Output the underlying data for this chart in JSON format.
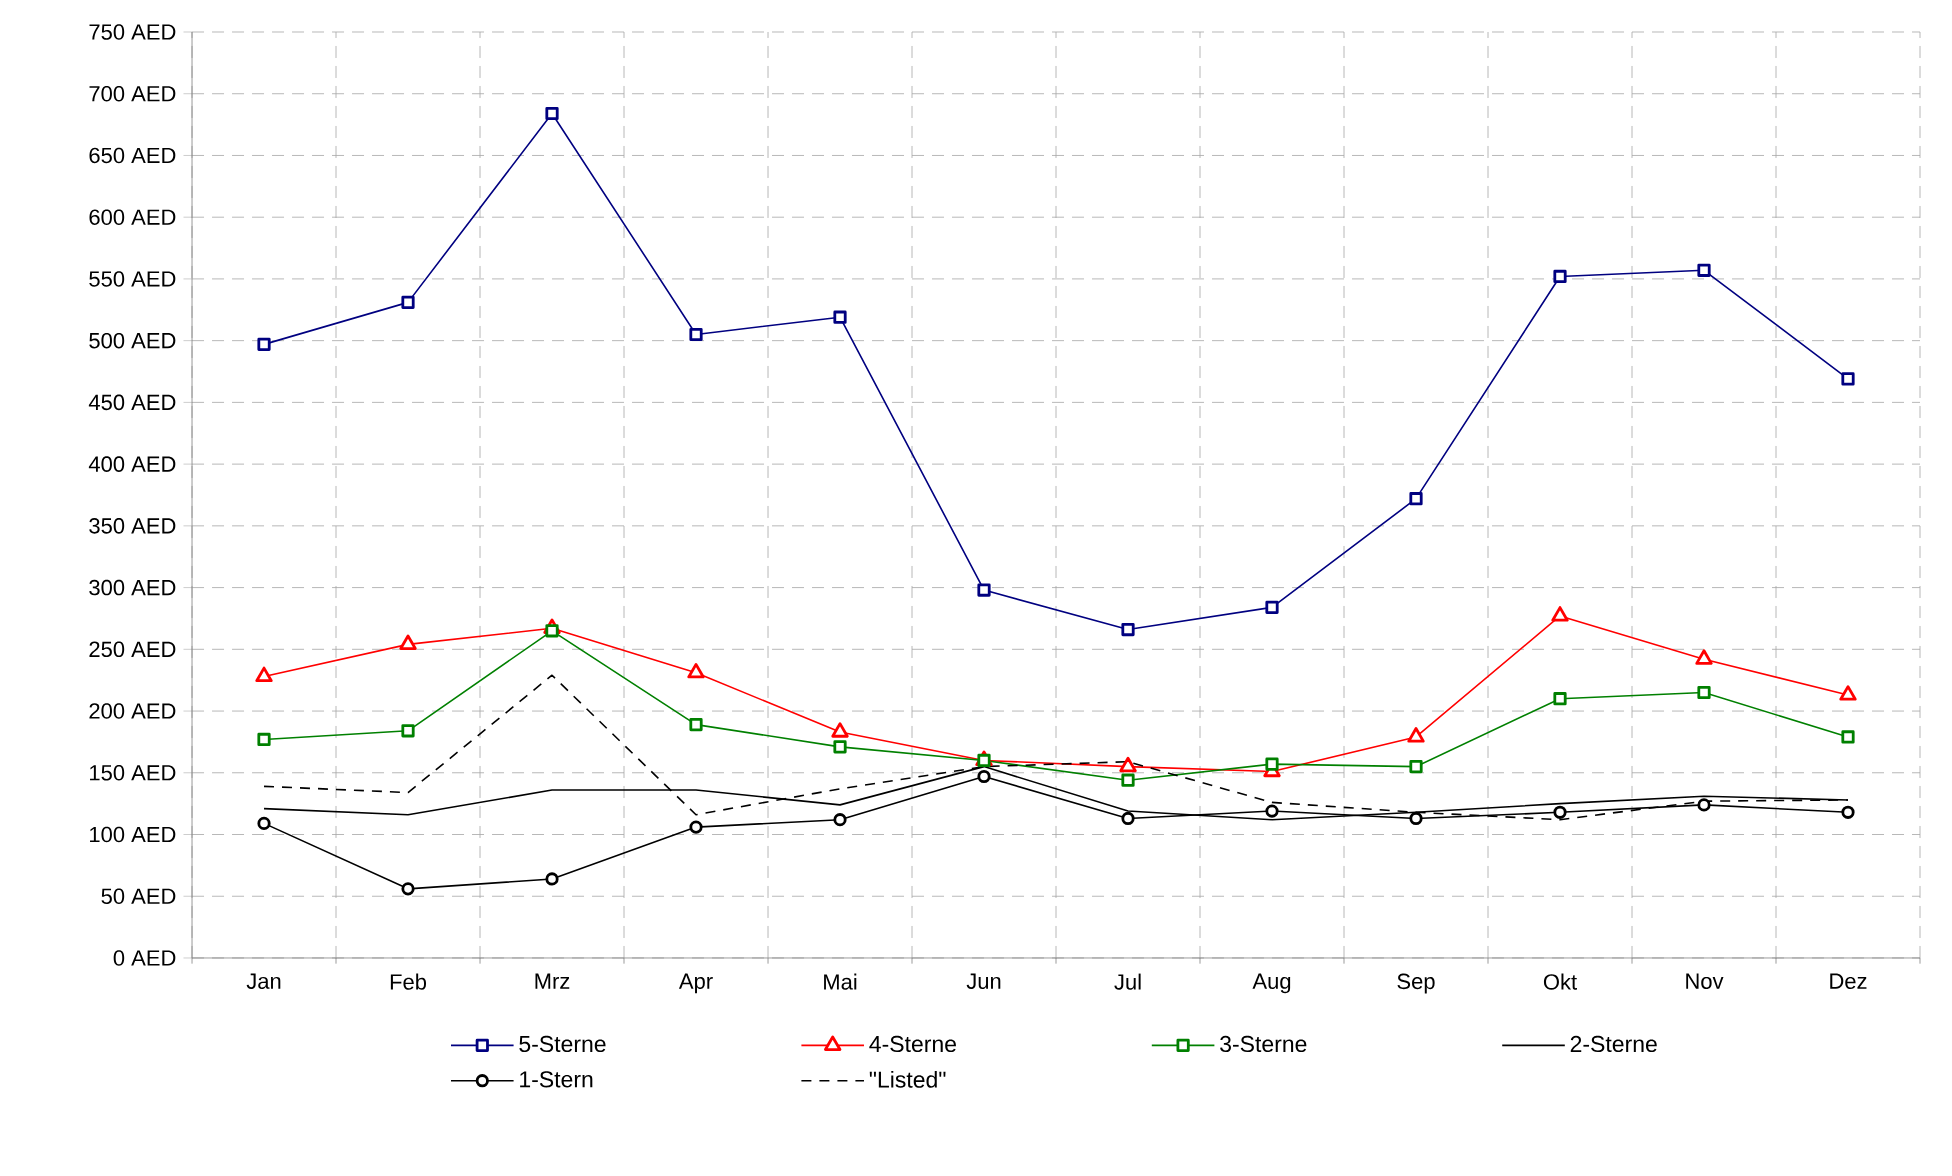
{
  "chart_data": {
    "type": "line",
    "categories": [
      "Jan",
      "Feb",
      "Mrz",
      "Apr",
      "Mai",
      "Jun",
      "Jul",
      "Aug",
      "Sep",
      "Okt",
      "Nov",
      "Dez"
    ],
    "series": [
      {
        "name": "5-Sterne",
        "color": "#000080",
        "marker": "square",
        "line_style": "solid",
        "values": [
          497,
          531,
          684,
          505,
          519,
          298,
          266,
          284,
          372,
          552,
          557,
          469
        ]
      },
      {
        "name": "4-Sterne",
        "color": "#ff0000",
        "marker": "triangle",
        "line_style": "solid",
        "values": [
          228,
          254,
          267,
          231,
          183,
          160,
          155,
          151,
          179,
          277,
          242,
          213
        ]
      },
      {
        "name": "3-Sterne",
        "color": "#008000",
        "marker": "square",
        "line_style": "solid",
        "values": [
          177,
          184,
          265,
          189,
          171,
          160,
          144,
          157,
          155,
          210,
          215,
          179
        ]
      },
      {
        "name": "2-Sterne",
        "color": "#000000",
        "marker": "none",
        "line_style": "solid",
        "values": [
          121,
          116,
          136,
          136,
          124,
          155,
          119,
          112,
          118,
          125,
          131,
          128
        ]
      },
      {
        "name": "1-Stern",
        "color": "#000000",
        "marker": "circle",
        "line_style": "solid",
        "values": [
          109,
          56,
          64,
          106,
          112,
          147,
          113,
          119,
          113,
          118,
          124,
          118
        ]
      },
      {
        "name": "\"Listed\"",
        "color": "#000000",
        "marker": "none",
        "line_style": "dashed",
        "values": [
          139,
          134,
          229,
          116,
          137,
          155,
          159,
          126,
          118,
          112,
          127,
          128
        ]
      }
    ],
    "ylim": [
      0,
      750
    ],
    "yticks": [
      {
        "value": 0,
        "label": "0 AED"
      },
      {
        "value": 50,
        "label": "50 AED"
      },
      {
        "value": 100,
        "label": "100 AED"
      },
      {
        "value": 150,
        "label": "150 AED"
      },
      {
        "value": 200,
        "label": "200 AED"
      },
      {
        "value": 250,
        "label": "250 AED"
      },
      {
        "value": 300,
        "label": "300 AED"
      },
      {
        "value": 350,
        "label": "350 AED"
      },
      {
        "value": 400,
        "label": "400 AED"
      },
      {
        "value": 450,
        "label": "450 AED"
      },
      {
        "value": 500,
        "label": "500 AED"
      },
      {
        "value": 550,
        "label": "550 AED"
      },
      {
        "value": 600,
        "label": "600 AED"
      },
      {
        "value": 650,
        "label": "650 AED"
      },
      {
        "value": 700,
        "label": "700 AED"
      },
      {
        "value": 750,
        "label": "750 AED"
      }
    ],
    "grid": true,
    "legend": "bottom"
  }
}
